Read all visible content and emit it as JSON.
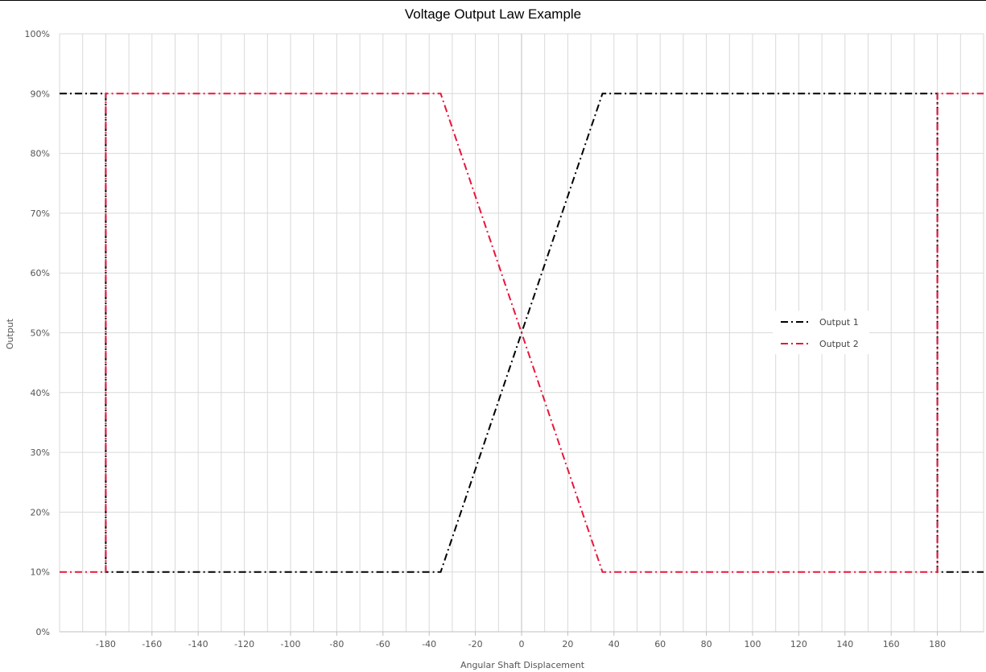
{
  "chart_data": {
    "type": "line",
    "title": "Voltage Output Law Example",
    "xlabel": "Angular Shaft Displacement",
    "ylabel": "Output",
    "xlim": [
      -200,
      200
    ],
    "ylim": [
      0,
      100
    ],
    "x_ticks": [
      -180,
      -160,
      -140,
      -120,
      -100,
      -80,
      -60,
      -40,
      -20,
      0,
      20,
      40,
      60,
      80,
      100,
      120,
      140,
      160,
      180
    ],
    "y_ticks": [
      "0%",
      "10%",
      "20%",
      "30%",
      "40%",
      "50%",
      "60%",
      "70%",
      "80%",
      "90%",
      "100%"
    ],
    "grid": true,
    "legend_position": "right",
    "series": [
      {
        "name": "Output 1",
        "color": "#000000",
        "x": [
          -200,
          -180,
          -180,
          -35,
          35,
          180,
          180,
          200
        ],
        "y": [
          90,
          90,
          10,
          10,
          90,
          90,
          10,
          10
        ]
      },
      {
        "name": "Output 2",
        "color": "#e8163c",
        "x": [
          -200,
          -180,
          -180,
          -35,
          35,
          180,
          180,
          200
        ],
        "y": [
          10,
          10,
          90,
          90,
          10,
          10,
          90,
          90
        ]
      }
    ]
  }
}
